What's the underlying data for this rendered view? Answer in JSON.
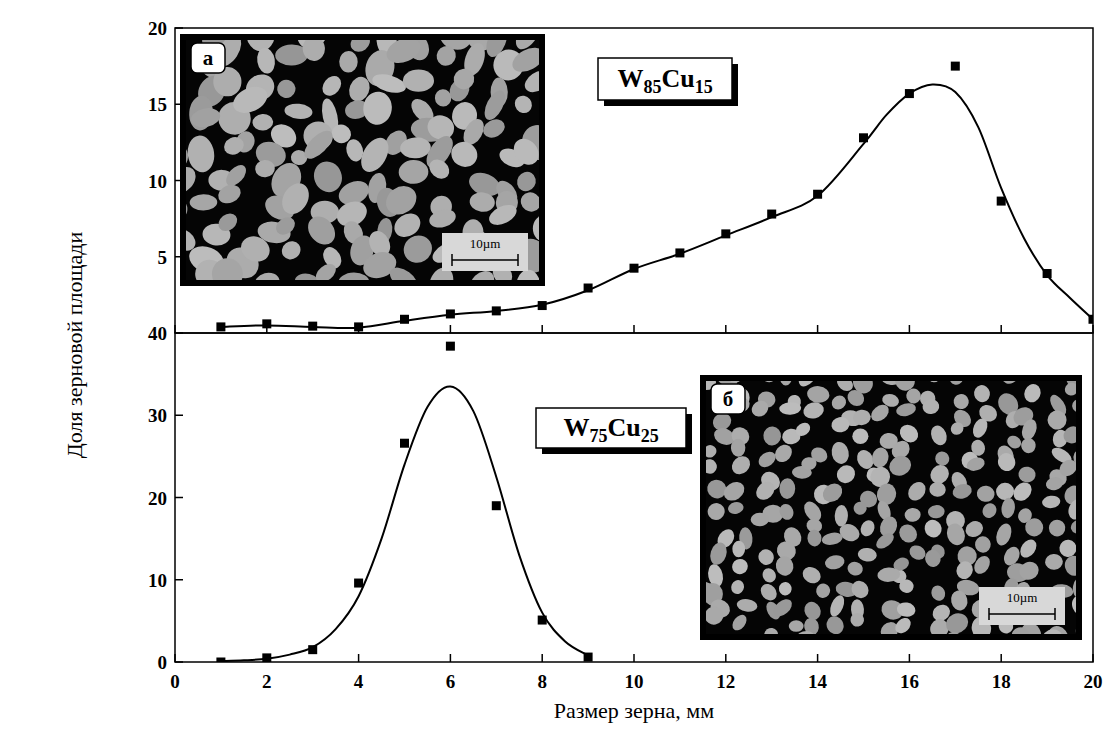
{
  "chart_data": [
    {
      "type": "scatter",
      "title": "W85Cu15",
      "ylabel": "Доля зерновой площади",
      "xlim": [
        0,
        20
      ],
      "xticks": [
        0,
        2,
        4,
        6,
        8,
        10,
        12,
        14,
        16,
        18,
        20
      ],
      "ylim": [
        0,
        20
      ],
      "yticks": [
        5,
        10,
        15,
        20
      ],
      "tick_labels": "y",
      "grid": false,
      "inset": {
        "letter": "а",
        "scale_bar": "10µm"
      },
      "series": [
        {
          "type": "scatter",
          "marker": "square",
          "color": "#000000",
          "x": [
            1,
            2,
            3,
            4,
            5,
            6,
            7,
            8,
            9,
            10,
            11,
            12,
            13,
            14,
            15,
            16,
            17,
            18,
            19,
            20
          ],
          "values": [
            0.4,
            0.6,
            0.45,
            0.4,
            0.9,
            1.25,
            1.45,
            1.8,
            2.95,
            4.25,
            5.25,
            6.5,
            7.8,
            9.1,
            12.8,
            15.7,
            17.5,
            8.65,
            3.9,
            0.9
          ]
        },
        {
          "type": "line",
          "line_style": "solid",
          "color": "#000000",
          "x": [
            1,
            2,
            3,
            4,
            5,
            6,
            7,
            8,
            9,
            10,
            11,
            12,
            13,
            14,
            15,
            15.5,
            16,
            16.5,
            17,
            17.5,
            18,
            18.5,
            19,
            19.5,
            20
          ],
          "values": [
            0.4,
            0.5,
            0.4,
            0.35,
            0.8,
            1.2,
            1.45,
            1.85,
            2.8,
            4.2,
            5.2,
            6.4,
            7.6,
            9.0,
            12.4,
            14.3,
            15.7,
            16.3,
            15.8,
            13.5,
            9.5,
            6.2,
            3.8,
            2.3,
            0.9
          ]
        }
      ]
    },
    {
      "type": "scatter",
      "title": "W75Cu25",
      "xlabel": "Размер зерна, мм",
      "xlim": [
        0,
        20
      ],
      "xticks": [
        0,
        2,
        4,
        6,
        8,
        10,
        12,
        14,
        16,
        18,
        20
      ],
      "ylim": [
        0,
        40
      ],
      "yticks": [
        0,
        10,
        20,
        30,
        40
      ],
      "grid": false,
      "inset": {
        "letter": "б",
        "scale_bar": "10µm"
      },
      "series": [
        {
          "type": "scatter",
          "marker": "square",
          "color": "#000000",
          "x": [
            1,
            2,
            3,
            4,
            5,
            6,
            7,
            8,
            9
          ],
          "values": [
            0,
            0.5,
            1.5,
            9.6,
            26.6,
            38.4,
            19,
            5.1,
            0.6
          ]
        },
        {
          "type": "line",
          "line_style": "solid",
          "color": "#000000",
          "x": [
            1,
            1.5,
            2,
            2.5,
            3,
            3.5,
            4,
            4.5,
            5,
            5.5,
            6,
            6.5,
            7,
            7.5,
            8,
            8.5,
            9
          ],
          "values": [
            0.1,
            0.2,
            0.4,
            0.9,
            1.8,
            4,
            8,
            15,
            24,
            31,
            33.5,
            30.5,
            22.5,
            13,
            6,
            2.5,
            0.8
          ]
        }
      ]
    }
  ]
}
